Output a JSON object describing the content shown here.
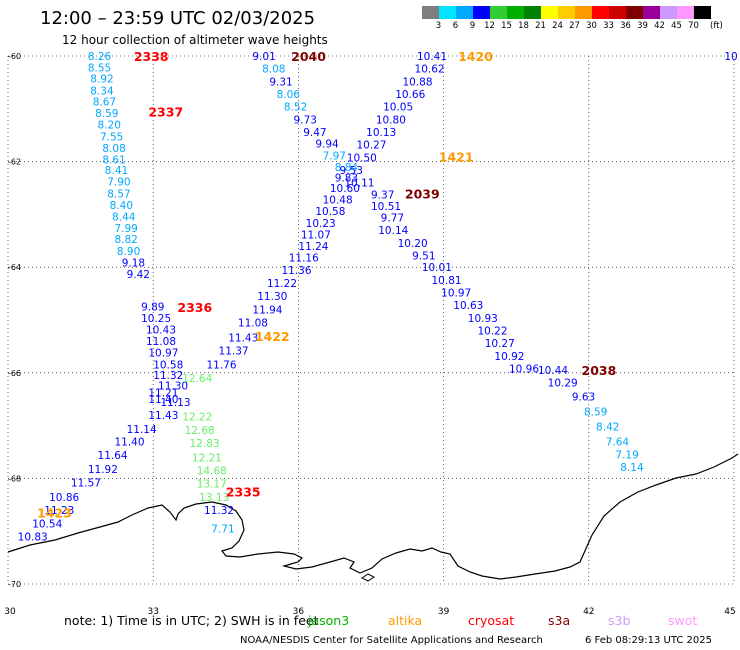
{
  "header": {
    "title": "12:00 – 23:59 UTC 02/03/2025",
    "subtitle": "12 hour collection of altimeter wave heights"
  },
  "colorbar": {
    "unit": "(ft)",
    "labels": [
      "3",
      "6",
      "9",
      "12",
      "15",
      "18",
      "21",
      "24",
      "27",
      "30",
      "33",
      "36",
      "39",
      "42",
      "45",
      "70"
    ],
    "colors": [
      "#7f7f7f",
      "#00e5ff",
      "#00a8ff",
      "#0000ff",
      "#33cc33",
      "#00b000",
      "#008000",
      "#ffff00",
      "#ffcc00",
      "#ff9900",
      "#ff0000",
      "#cc0000",
      "#800000",
      "#990099",
      "#cc99ff",
      "#ff99ff",
      "#000000"
    ]
  },
  "map": {
    "x_ticks": [
      "30",
      "33",
      "36",
      "39",
      "42",
      "45"
    ],
    "y_ticks": [
      "-60",
      "-62",
      "-64",
      "-66",
      "-68",
      "-70"
    ],
    "extent": {
      "lon": [
        30,
        45
      ],
      "lat": [
        -70,
        -60
      ]
    }
  },
  "passes": [
    {
      "label": "2338",
      "color": "#ff0000",
      "lon": 32.6,
      "lat": -60.0
    },
    {
      "label": "2337",
      "color": "#ff0000",
      "lon": 32.9,
      "lat": -61.05
    },
    {
      "label": "2336",
      "color": "#ff0000",
      "lon": 33.5,
      "lat": -64.75
    },
    {
      "label": "2335",
      "color": "#ff0000",
      "lon": 34.5,
      "lat": -68.25
    },
    {
      "label": "2040",
      "color": "#800000",
      "lon": 35.85,
      "lat": -60.0
    },
    {
      "label": "2039",
      "color": "#800000",
      "lon": 38.2,
      "lat": -62.6
    },
    {
      "label": "2038",
      "color": "#800000",
      "lon": 41.85,
      "lat": -65.95
    },
    {
      "label": "1420",
      "color": "#ff9900",
      "lon": 39.3,
      "lat": -60.0
    },
    {
      "label": "1421",
      "color": "#ff9900",
      "lon": 38.9,
      "lat": -61.9
    },
    {
      "label": "1422",
      "color": "#ff9900",
      "lon": 35.1,
      "lat": -65.3
    },
    {
      "label": "1423",
      "color": "#ff9900",
      "lon": 30.6,
      "lat": -68.65
    }
  ],
  "observations": [
    {
      "v": "8.26",
      "lon": 31.65,
      "lat": -60.0,
      "c": "#00a8ff"
    },
    {
      "v": "8.55",
      "lon": 31.65,
      "lat": -60.22,
      "c": "#00a8ff"
    },
    {
      "v": "8.92",
      "lon": 31.7,
      "lat": -60.43,
      "c": "#00a8ff"
    },
    {
      "v": "8.34",
      "lon": 31.7,
      "lat": -60.65,
      "c": "#00a8ff"
    },
    {
      "v": "8.67",
      "lon": 31.75,
      "lat": -60.86,
      "c": "#00a8ff"
    },
    {
      "v": "8.59",
      "lon": 31.8,
      "lat": -61.08,
      "c": "#00a8ff"
    },
    {
      "v": "8.20",
      "lon": 31.85,
      "lat": -61.3,
      "c": "#00a8ff"
    },
    {
      "v": "7.55",
      "lon": 31.9,
      "lat": -61.52,
      "c": "#00a8ff"
    },
    {
      "v": "8.08",
      "lon": 31.95,
      "lat": -61.74,
      "c": "#00a8ff"
    },
    {
      "v": "8.61",
      "lon": 31.95,
      "lat": -61.96,
      "c": "#00a8ff"
    },
    {
      "v": "8.41",
      "lon": 32.0,
      "lat": -62.16,
      "c": "#00a8ff"
    },
    {
      "v": "7.90",
      "lon": 32.05,
      "lat": -62.38,
      "c": "#00a8ff"
    },
    {
      "v": "8.57",
      "lon": 32.05,
      "lat": -62.6,
      "c": "#00a8ff"
    },
    {
      "v": "8.40",
      "lon": 32.1,
      "lat": -62.82,
      "c": "#00a8ff"
    },
    {
      "v": "8.44",
      "lon": 32.15,
      "lat": -63.04,
      "c": "#00a8ff"
    },
    {
      "v": "7.99",
      "lon": 32.2,
      "lat": -63.26,
      "c": "#00a8ff"
    },
    {
      "v": "8.82",
      "lon": 32.2,
      "lat": -63.47,
      "c": "#00a8ff"
    },
    {
      "v": "8.90",
      "lon": 32.25,
      "lat": -63.69,
      "c": "#00a8ff"
    },
    {
      "v": "9.18",
      "lon": 32.35,
      "lat": -63.91,
      "c": "#0000ff"
    },
    {
      "v": "9.42",
      "lon": 32.45,
      "lat": -64.13,
      "c": "#0000ff"
    },
    {
      "v": "9.89",
      "lon": 32.75,
      "lat": -64.74,
      "c": "#0000ff"
    },
    {
      "v": "10.25",
      "lon": 32.75,
      "lat": -64.96,
      "c": "#0000ff"
    },
    {
      "v": "10.43",
      "lon": 32.85,
      "lat": -65.18,
      "c": "#0000ff"
    },
    {
      "v": "11.08",
      "lon": 32.85,
      "lat": -65.4,
      "c": "#0000ff"
    },
    {
      "v": "10.97",
      "lon": 32.9,
      "lat": -65.62,
      "c": "#0000ff"
    },
    {
      "v": "10.58",
      "lon": 33.0,
      "lat": -65.84,
      "c": "#0000ff"
    },
    {
      "v": "11.32",
      "lon": 33.0,
      "lat": -66.04,
      "c": "#0000ff"
    },
    {
      "v": "11.30",
      "lon": 33.1,
      "lat": -66.24,
      "c": "#0000ff"
    },
    {
      "v": "11.21",
      "lon": 32.9,
      "lat": -66.37,
      "c": "#0000ff"
    },
    {
      "v": "11.40",
      "lon": 32.9,
      "lat": -66.5,
      "c": "#0000ff"
    },
    {
      "v": "11.13",
      "lon": 33.15,
      "lat": -66.55,
      "c": "#0000ff"
    },
    {
      "v": "11.43",
      "lon": 32.9,
      "lat": -66.8,
      "c": "#0000ff"
    },
    {
      "v": "11.14",
      "lon": 32.45,
      "lat": -67.06,
      "c": "#0000ff"
    },
    {
      "v": "11.40",
      "lon": 32.2,
      "lat": -67.3,
      "c": "#0000ff"
    },
    {
      "v": "11.64",
      "lon": 31.85,
      "lat": -67.56,
      "c": "#0000ff"
    },
    {
      "v": "11.92",
      "lon": 31.65,
      "lat": -67.82,
      "c": "#0000ff"
    },
    {
      "v": "11.57",
      "lon": 31.3,
      "lat": -68.08,
      "c": "#0000ff"
    },
    {
      "v": "10.86",
      "lon": 30.85,
      "lat": -68.35,
      "c": "#0000ff"
    },
    {
      "v": "11.23",
      "lon": 30.75,
      "lat": -68.6,
      "c": "#0000ff"
    },
    {
      "v": "10.54",
      "lon": 30.5,
      "lat": -68.85,
      "c": "#0000ff"
    },
    {
      "v": "10.83",
      "lon": 30.2,
      "lat": -69.1,
      "c": "#0000ff"
    },
    {
      "v": "12.22",
      "lon": 33.6,
      "lat": -66.83,
      "c": "#66ee66"
    },
    {
      "v": "12.68",
      "lon": 33.65,
      "lat": -67.08,
      "c": "#66ee66"
    },
    {
      "v": "12.83",
      "lon": 33.75,
      "lat": -67.33,
      "c": "#66ee66"
    },
    {
      "v": "12.21",
      "lon": 33.8,
      "lat": -67.6,
      "c": "#66ee66"
    },
    {
      "v": "14.68",
      "lon": 33.9,
      "lat": -67.85,
      "c": "#66ee66"
    },
    {
      "v": "13.17",
      "lon": 33.9,
      "lat": -68.1,
      "c": "#66ee66"
    },
    {
      "v": "13.13",
      "lon": 33.95,
      "lat": -68.35,
      "c": "#66ee66"
    },
    {
      "v": "11.32",
      "lon": 34.05,
      "lat": -68.6,
      "c": "#0000ff"
    },
    {
      "v": "7.71",
      "lon": 34.2,
      "lat": -68.95,
      "c": "#00a8ff"
    },
    {
      "v": "12.64",
      "lon": 33.6,
      "lat": -66.1,
      "c": "#66ee66"
    },
    {
      "v": "11.76",
      "lon": 34.1,
      "lat": -65.84,
      "c": "#0000ff"
    },
    {
      "v": "11.37",
      "lon": 34.35,
      "lat": -65.58,
      "c": "#0000ff"
    },
    {
      "v": "11.43",
      "lon": 34.55,
      "lat": -65.33,
      "c": "#0000ff"
    },
    {
      "v": "11.08",
      "lon": 34.75,
      "lat": -65.05,
      "c": "#0000ff"
    },
    {
      "v": "11.94",
      "lon": 35.05,
      "lat": -64.8,
      "c": "#0000ff"
    },
    {
      "v": "11.30",
      "lon": 35.15,
      "lat": -64.55,
      "c": "#0000ff"
    },
    {
      "v": "11.22",
      "lon": 35.35,
      "lat": -64.3,
      "c": "#0000ff"
    },
    {
      "v": "11.36",
      "lon": 35.65,
      "lat": -64.05,
      "c": "#0000ff"
    },
    {
      "v": "11.16",
      "lon": 35.8,
      "lat": -63.82,
      "c": "#0000ff"
    },
    {
      "v": "11.24",
      "lon": 36.0,
      "lat": -63.6,
      "c": "#0000ff"
    },
    {
      "v": "11.07",
      "lon": 36.05,
      "lat": -63.38,
      "c": "#0000ff"
    },
    {
      "v": "10.23",
      "lon": 36.15,
      "lat": -63.16,
      "c": "#0000ff"
    },
    {
      "v": "10.58",
      "lon": 36.35,
      "lat": -62.94,
      "c": "#0000ff"
    },
    {
      "v": "10.48",
      "lon": 36.5,
      "lat": -62.72,
      "c": "#0000ff"
    },
    {
      "v": "10.60",
      "lon": 36.65,
      "lat": -62.5,
      "c": "#0000ff"
    },
    {
      "v": "9.83",
      "lon": 36.75,
      "lat": -62.3,
      "c": "#0000ff"
    },
    {
      "v": "8.84",
      "lon": 36.75,
      "lat": -62.1,
      "c": "#00a8ff"
    },
    {
      "v": "7.97",
      "lon": 36.5,
      "lat": -61.88,
      "c": "#00a8ff"
    },
    {
      "v": "9.94",
      "lon": 36.35,
      "lat": -61.66,
      "c": "#0000ff"
    },
    {
      "v": "9.47",
      "lon": 36.1,
      "lat": -61.44,
      "c": "#0000ff"
    },
    {
      "v": "9.73",
      "lon": 35.9,
      "lat": -61.2,
      "c": "#0000ff"
    },
    {
      "v": "8.52",
      "lon": 35.7,
      "lat": -60.96,
      "c": "#00a8ff"
    },
    {
      "v": "8.06",
      "lon": 35.55,
      "lat": -60.72,
      "c": "#00a8ff"
    },
    {
      "v": "9.31",
      "lon": 35.4,
      "lat": -60.48,
      "c": "#0000ff"
    },
    {
      "v": "8.08",
      "lon": 35.25,
      "lat": -60.24,
      "c": "#00a8ff"
    },
    {
      "v": "9.01",
      "lon": 35.05,
      "lat": -60.0,
      "c": "#0000ff"
    },
    {
      "v": "10.41",
      "lon": 38.45,
      "lat": -60.0,
      "c": "#0000ff"
    },
    {
      "v": "10.62",
      "lon": 38.4,
      "lat": -60.24,
      "c": "#0000ff"
    },
    {
      "v": "10.88",
      "lon": 38.15,
      "lat": -60.48,
      "c": "#0000ff"
    },
    {
      "v": "10.66",
      "lon": 38.0,
      "lat": -60.72,
      "c": "#0000ff"
    },
    {
      "v": "10.05",
      "lon": 37.75,
      "lat": -60.96,
      "c": "#0000ff"
    },
    {
      "v": "10.80",
      "lon": 37.6,
      "lat": -61.2,
      "c": "#0000ff"
    },
    {
      "v": "10.13",
      "lon": 37.4,
      "lat": -61.44,
      "c": "#0000ff"
    },
    {
      "v": "10.27",
      "lon": 37.2,
      "lat": -61.68,
      "c": "#0000ff"
    },
    {
      "v": "10.50",
      "lon": 37.0,
      "lat": -61.92,
      "c": "#0000ff"
    },
    {
      "v": "9.53",
      "lon": 36.85,
      "lat": -62.16,
      "c": "#0000ff"
    },
    {
      "v": "10.11",
      "lon": 36.95,
      "lat": -62.4,
      "c": "#0000ff"
    },
    {
      "v": "9.37",
      "lon": 37.5,
      "lat": -62.62,
      "c": "#0000ff"
    },
    {
      "v": "10.51",
      "lon": 37.5,
      "lat": -62.84,
      "c": "#0000ff"
    },
    {
      "v": "9.77",
      "lon": 37.7,
      "lat": -63.06,
      "c": "#0000ff"
    },
    {
      "v": "10.14",
      "lon": 37.65,
      "lat": -63.3,
      "c": "#0000ff"
    },
    {
      "v": "10.20",
      "lon": 38.05,
      "lat": -63.54,
      "c": "#0000ff"
    },
    {
      "v": "9.51",
      "lon": 38.35,
      "lat": -63.78,
      "c": "#0000ff"
    },
    {
      "v": "10.01",
      "lon": 38.55,
      "lat": -64.0,
      "c": "#0000ff"
    },
    {
      "v": "10.81",
      "lon": 38.75,
      "lat": -64.24,
      "c": "#0000ff"
    },
    {
      "v": "10.97",
      "lon": 38.95,
      "lat": -64.48,
      "c": "#0000ff"
    },
    {
      "v": "10.63",
      "lon": 39.2,
      "lat": -64.72,
      "c": "#0000ff"
    },
    {
      "v": "10.93",
      "lon": 39.5,
      "lat": -64.96,
      "c": "#0000ff"
    },
    {
      "v": "10.22",
      "lon": 39.7,
      "lat": -65.2,
      "c": "#0000ff"
    },
    {
      "v": "10.27",
      "lon": 39.85,
      "lat": -65.44,
      "c": "#0000ff"
    },
    {
      "v": "10.92",
      "lon": 40.05,
      "lat": -65.68,
      "c": "#0000ff"
    },
    {
      "v": "10.96",
      "lon": 40.35,
      "lat": -65.92,
      "c": "#0000ff"
    },
    {
      "v": "10.44",
      "lon": 40.95,
      "lat": -65.95,
      "c": "#0000ff"
    },
    {
      "v": "10.29",
      "lon": 41.15,
      "lat": -66.18,
      "c": "#0000ff"
    },
    {
      "v": "9.63",
      "lon": 41.65,
      "lat": -66.45,
      "c": "#0000ff"
    },
    {
      "v": "8.59",
      "lon": 41.9,
      "lat": -66.73,
      "c": "#00a8ff"
    },
    {
      "v": "8.42",
      "lon": 42.15,
      "lat": -67.02,
      "c": "#00a8ff"
    },
    {
      "v": "7.64",
      "lon": 42.35,
      "lat": -67.3,
      "c": "#00a8ff"
    },
    {
      "v": "7.19",
      "lon": 42.55,
      "lat": -67.55,
      "c": "#00a8ff"
    },
    {
      "v": "8.14",
      "lon": 42.65,
      "lat": -67.78,
      "c": "#00a8ff"
    },
    {
      "v": "10",
      "lon": 44.8,
      "lat": -60.0,
      "c": "#0000ff"
    }
  ],
  "note": "note:  1) Time is in UTC;  2) SWH is in feet",
  "legend": [
    {
      "label": "jason3",
      "color": "#00b000"
    },
    {
      "label": "altika",
      "color": "#ff9900"
    },
    {
      "label": "cryosat",
      "color": "#ff0000"
    },
    {
      "label": "s3a",
      "color": "#800000"
    },
    {
      "label": "s3b",
      "color": "#cc99ff"
    },
    {
      "label": "swot",
      "color": "#ff99ff"
    }
  ],
  "footer": {
    "org": "NOAA/NESDIS Center for Satellite Applications and Research",
    "timestamp": "6 Feb 08:29:13 UTC 2025"
  }
}
